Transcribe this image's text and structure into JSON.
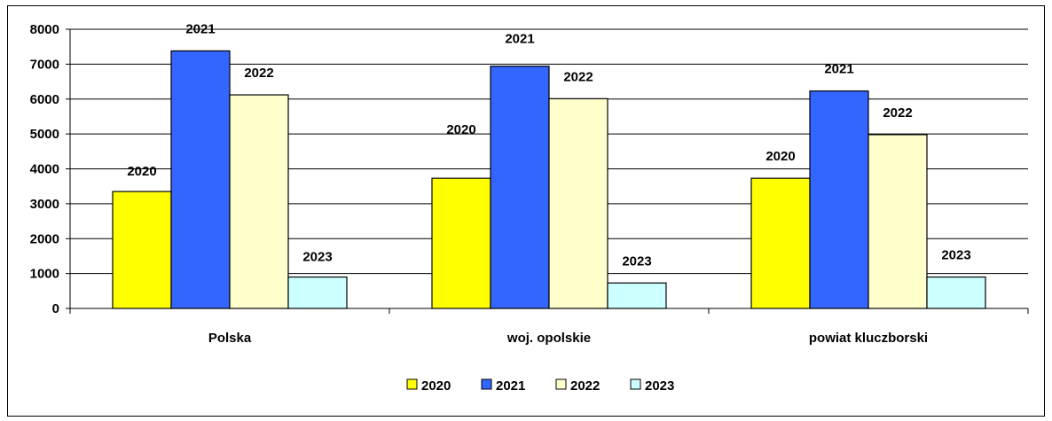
{
  "chart_data": {
    "type": "bar",
    "categories": [
      "Polska",
      "woj. opolskie",
      "powiat kluczborski"
    ],
    "series": [
      {
        "name": "2020",
        "color": "#FFFF00",
        "values": [
          3350,
          3730,
          3730
        ],
        "labels": [
          "2020",
          "2020",
          "2020"
        ]
      },
      {
        "name": "2021",
        "color": "#3366FF",
        "values": [
          7380,
          6940,
          6230
        ],
        "labels": [
          "2021",
          "2021",
          "2021"
        ]
      },
      {
        "name": "2022",
        "color": "#FFFFCC",
        "values": [
          6120,
          6010,
          4980
        ],
        "labels": [
          "2022",
          "2022",
          "2022"
        ]
      },
      {
        "name": "2023",
        "color": "#CCFFFF",
        "values": [
          900,
          730,
          900
        ],
        "labels": [
          "2023",
          "2023",
          "2023"
        ]
      }
    ],
    "ylim": [
      0,
      8000
    ],
    "yticks": [
      "0",
      "1000",
      "2000",
      "3000",
      "4000",
      "5000",
      "6000",
      "7000",
      "8000"
    ],
    "grid": "horizontal",
    "legend": "bottom",
    "title": "",
    "xlabel": "",
    "ylabel": ""
  }
}
